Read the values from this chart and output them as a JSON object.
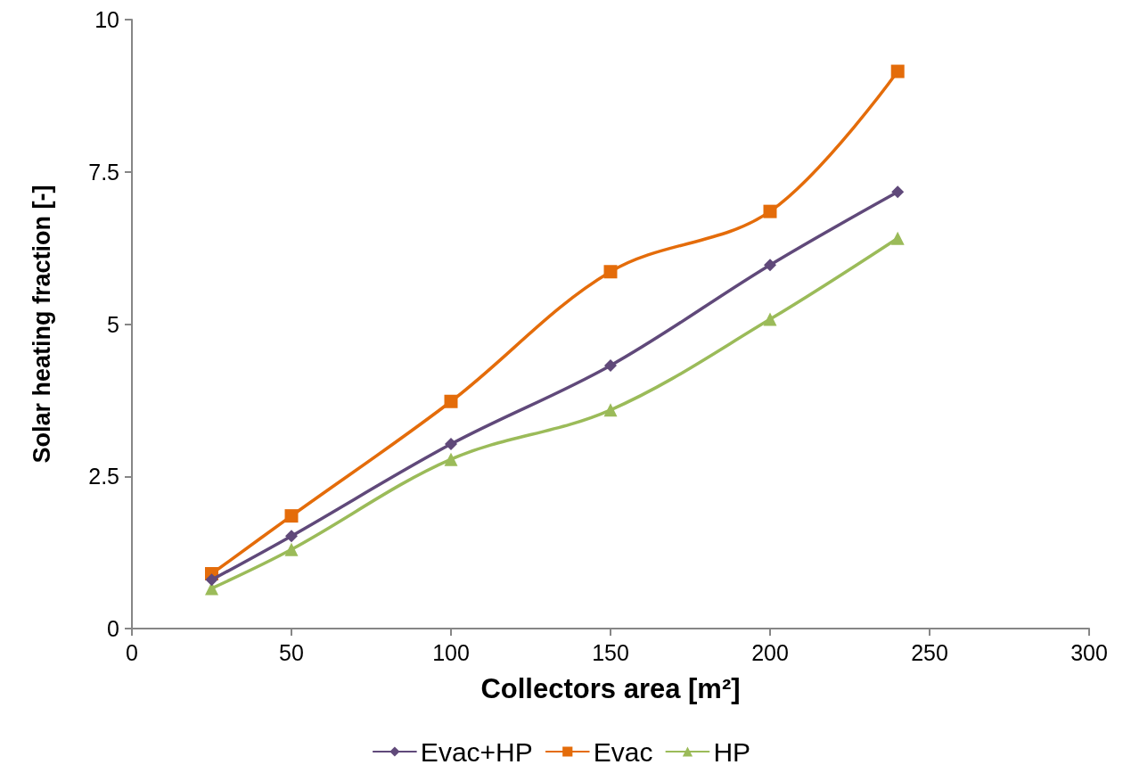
{
  "chart_data": {
    "type": "line",
    "xlabel": "Collectors area [m²]",
    "ylabel": "Solar heating fraction [-]",
    "x": [
      25,
      50,
      100,
      150,
      200,
      240
    ],
    "xlim": [
      0,
      300
    ],
    "xticks": [
      0,
      50,
      100,
      150,
      200,
      250,
      300
    ],
    "ylim": [
      0,
      10
    ],
    "yticks": [
      0,
      2.5,
      5,
      7.5,
      10
    ],
    "grid": false,
    "legend": "bottom",
    "line_style": "solid",
    "series": [
      {
        "name": "Evac+HP",
        "color": "#60497a",
        "marker": "diamond",
        "values": [
          0.8,
          1.52,
          3.03,
          4.32,
          5.97,
          7.17
        ]
      },
      {
        "name": "Evac",
        "color": "#e46c0a",
        "marker": "square",
        "values": [
          0.9,
          1.85,
          3.73,
          5.86,
          6.85,
          9.15
        ]
      },
      {
        "name": "HP",
        "color": "#9bbb59",
        "marker": "triangle",
        "values": [
          0.66,
          1.3,
          2.78,
          3.59,
          5.08,
          6.41
        ]
      }
    ]
  }
}
